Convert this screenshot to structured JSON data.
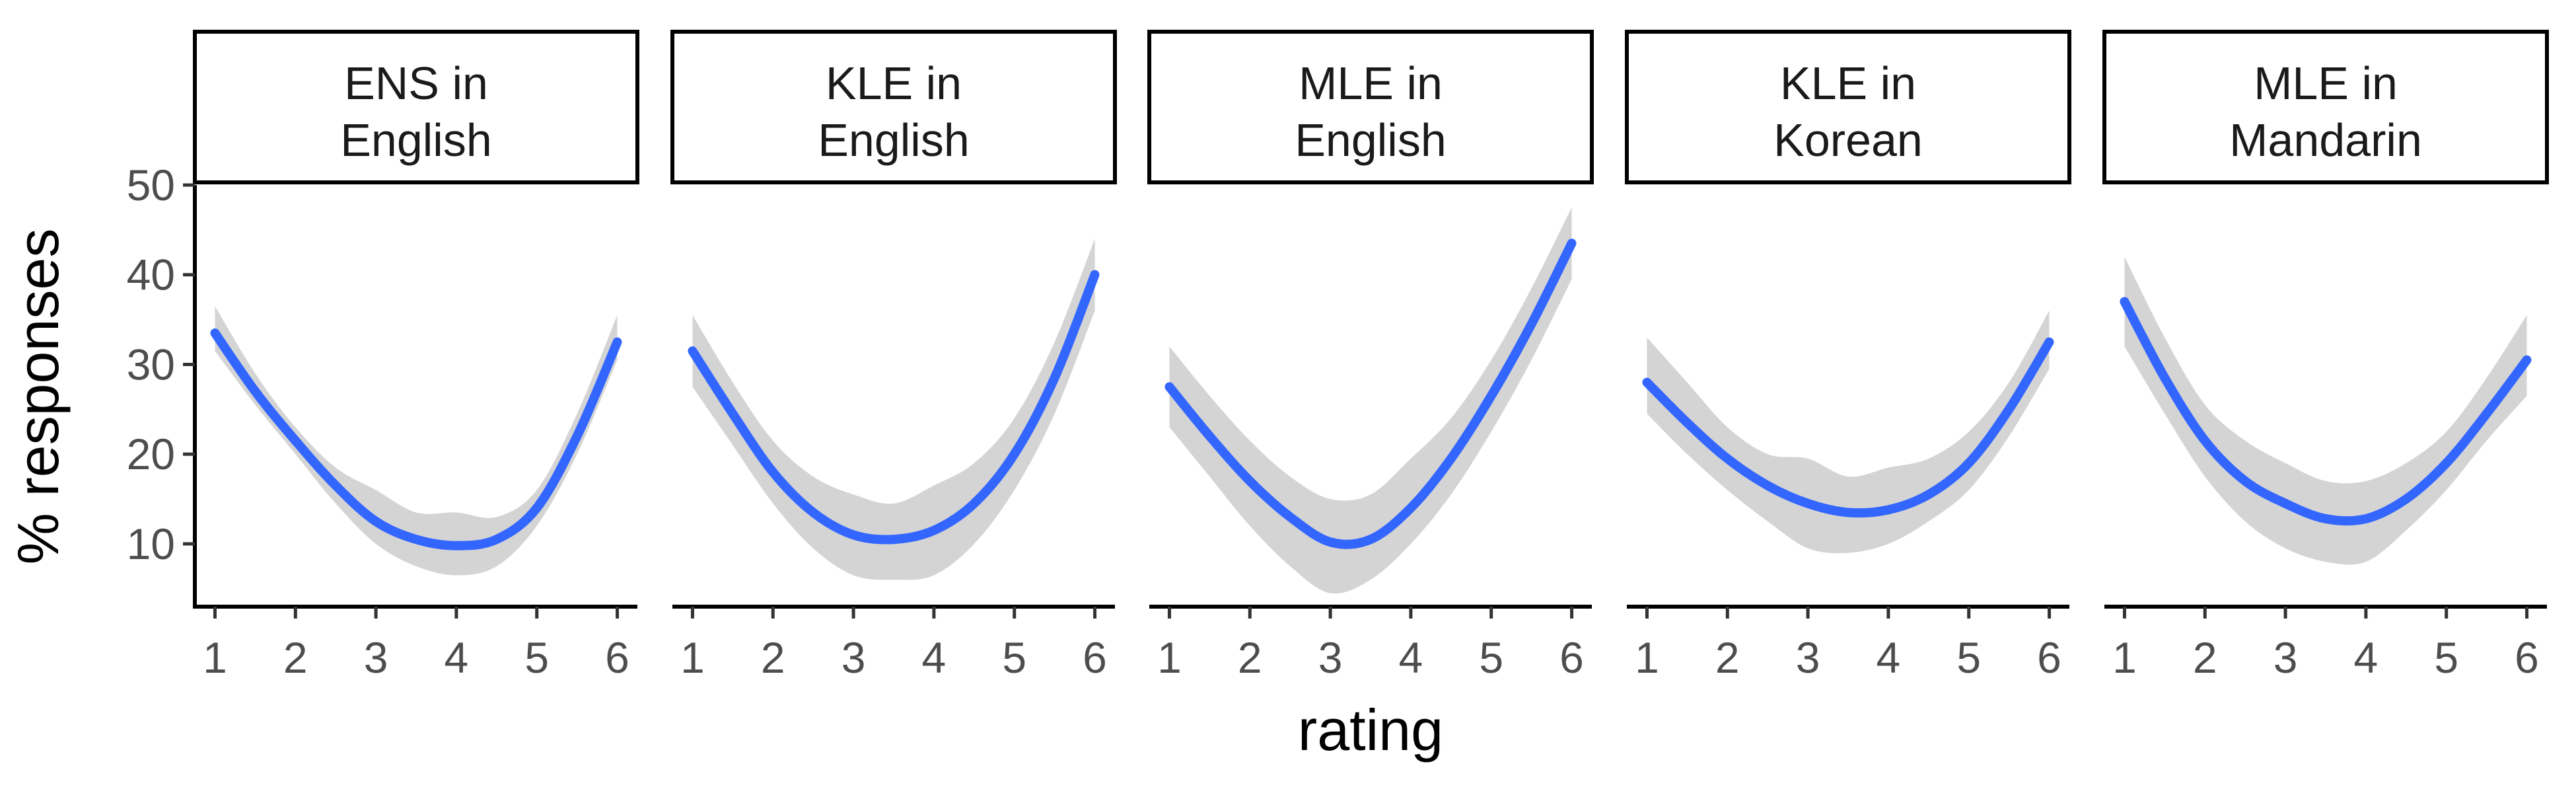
{
  "chart_data": {
    "type": "line",
    "layout": "faceted",
    "xlabel": "rating",
    "ylabel": "% responses",
    "x_ticks": [
      1,
      2,
      3,
      4,
      5,
      6
    ],
    "y_ticks": [
      10,
      20,
      30,
      40,
      50
    ],
    "xlim": [
      0.75,
      6.25
    ],
    "ylim": [
      3,
      50
    ],
    "grid": false,
    "line_color": "#3366ff",
    "ribbon_color": "#d4d4d4",
    "panels": [
      {
        "title_lines": [
          "ENS in",
          "English"
        ],
        "x": [
          1,
          1.5,
          2,
          2.5,
          3,
          3.5,
          4,
          4.5,
          5,
          5.5,
          6
        ],
        "y": [
          33.5,
          27,
          21.5,
          16.5,
          12.5,
          10.5,
          9.8,
          10.5,
          14,
          22,
          32.5
        ],
        "lower": [
          31.5,
          25.5,
          20,
          14.5,
          10,
          7.5,
          6.5,
          7.5,
          12,
          20,
          30.5
        ],
        "upper": [
          36.5,
          29,
          23,
          18.5,
          16,
          13.5,
          13.5,
          13,
          16,
          24.5,
          35.5
        ]
      },
      {
        "title_lines": [
          "KLE in",
          "English"
        ],
        "x": [
          1,
          1.5,
          2,
          2.5,
          3,
          3.5,
          4,
          4.5,
          5,
          5.5,
          6
        ],
        "y": [
          31.5,
          24.5,
          18,
          13.5,
          11,
          10.5,
          11.5,
          14.5,
          20,
          28.5,
          40
        ],
        "lower": [
          27.5,
          21,
          14.5,
          9.5,
          6.5,
          6,
          6.5,
          10,
          16,
          24.5,
          36
        ],
        "upper": [
          35.5,
          28,
          21.5,
          17.5,
          15.5,
          14.5,
          16.5,
          19,
          24,
          32.5,
          44
        ]
      },
      {
        "title_lines": [
          "MLE in",
          "English"
        ],
        "x": [
          1,
          1.5,
          2,
          2.5,
          3,
          3.5,
          4,
          4.5,
          5,
          5.5,
          6
        ],
        "y": [
          27.5,
          22,
          17,
          13,
          10.2,
          10.5,
          14,
          19.5,
          26.5,
          34.5,
          43.5
        ],
        "lower": [
          23,
          17.5,
          12,
          7.5,
          4.5,
          6,
          10,
          15.5,
          22.5,
          30.5,
          39.5
        ],
        "upper": [
          32,
          26.5,
          21.5,
          17.5,
          15,
          15.5,
          19.5,
          24,
          30.5,
          38.5,
          47.5
        ]
      },
      {
        "title_lines": [
          "KLE in",
          "Korean"
        ],
        "x": [
          1,
          1.5,
          2,
          2.5,
          3,
          3.5,
          4,
          4.5,
          5,
          5.5,
          6
        ],
        "y": [
          28,
          23.5,
          19.5,
          16.5,
          14.5,
          13.5,
          13.8,
          15.5,
          19,
          25,
          32.5
        ],
        "lower": [
          24.5,
          20,
          16,
          12.5,
          9.5,
          9,
          10,
          12.5,
          16,
          22,
          29.5
        ],
        "upper": [
          33,
          28,
          23,
          20,
          19.5,
          17.5,
          18.5,
          19.5,
          22.5,
          28,
          36
        ]
      },
      {
        "title_lines": [
          "MLE in",
          "Mandarin"
        ],
        "x": [
          1,
          1.5,
          2,
          2.5,
          3,
          3.5,
          4,
          4.5,
          5,
          5.5,
          6
        ],
        "y": [
          37,
          28.5,
          21.5,
          17,
          14.5,
          12.8,
          12.8,
          15,
          19,
          24.5,
          30.5
        ],
        "lower": [
          32,
          24.5,
          17.5,
          12.5,
          9.5,
          8,
          8,
          11.5,
          16,
          21.5,
          26.5
        ],
        "upper": [
          42,
          33,
          25.5,
          21.5,
          19,
          17,
          17,
          19,
          22.5,
          28.5,
          35.5
        ]
      }
    ]
  }
}
